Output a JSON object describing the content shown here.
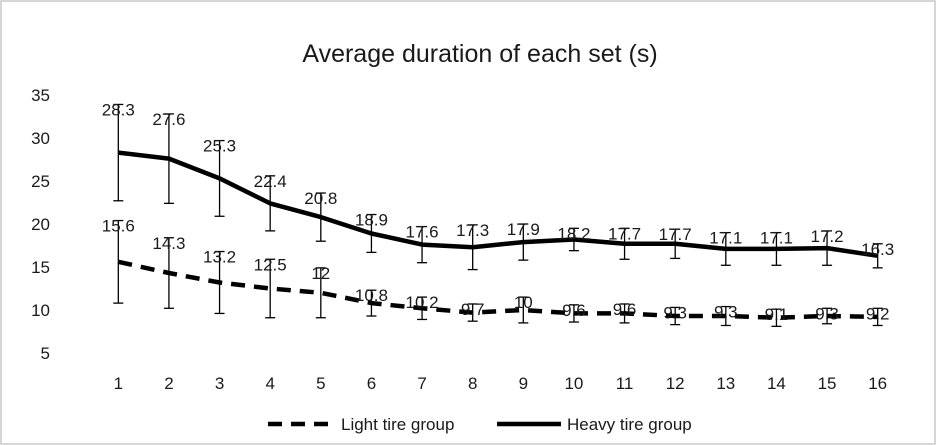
{
  "chart_data": {
    "type": "line",
    "title": "Average duration of each set (s)",
    "xlabel": "",
    "ylabel": "",
    "x": [
      1,
      2,
      3,
      4,
      5,
      6,
      7,
      8,
      9,
      10,
      11,
      12,
      13,
      14,
      15,
      16
    ],
    "ylim": [
      5,
      35
    ],
    "yticks": [
      5,
      10,
      15,
      20,
      25,
      30,
      35
    ],
    "grid": false,
    "legend_position": "bottom",
    "series": [
      {
        "name": "Light tire group",
        "style": "dashed",
        "color": "#000000",
        "values": [
          15.6,
          14.3,
          13.2,
          12.5,
          12,
          10.8,
          10.2,
          9.7,
          10,
          9.6,
          9.6,
          9.3,
          9.3,
          9.1,
          9.3,
          9.2
        ],
        "labels": [
          "15.6",
          "14.3",
          "13.2",
          "12.5",
          "12",
          "10.8",
          "10.2",
          "9.7",
          "10",
          "9.6",
          "9.6",
          "9.3",
          "9.3",
          "9.1",
          "9.3",
          "9.2"
        ],
        "error": [
          4.8,
          4.1,
          3.6,
          3.4,
          2.9,
          1.5,
          1.3,
          1.0,
          1.5,
          1.0,
          1.1,
          1.0,
          1.1,
          1.0,
          0.9,
          1.0
        ]
      },
      {
        "name": "Heavy tire group",
        "style": "solid",
        "color": "#000000",
        "values": [
          28.3,
          27.6,
          25.3,
          22.4,
          20.8,
          18.9,
          17.6,
          17.3,
          17.9,
          18.2,
          17.7,
          17.7,
          17.1,
          17.1,
          17.2,
          16.3
        ],
        "labels": [
          "28.3",
          "27.6",
          "25.3",
          "22.4",
          "20.8",
          "18.9",
          "17.6",
          "17.3",
          "17.9",
          "18.2",
          "17.7",
          "17.7",
          "17.1",
          "17.1",
          "17.2",
          "16.3"
        ],
        "error": [
          5.6,
          5.2,
          4.4,
          3.2,
          2.8,
          2.2,
          2.1,
          2.6,
          2.1,
          1.3,
          1.8,
          1.7,
          1.9,
          1.9,
          2.0,
          1.4
        ]
      }
    ]
  }
}
